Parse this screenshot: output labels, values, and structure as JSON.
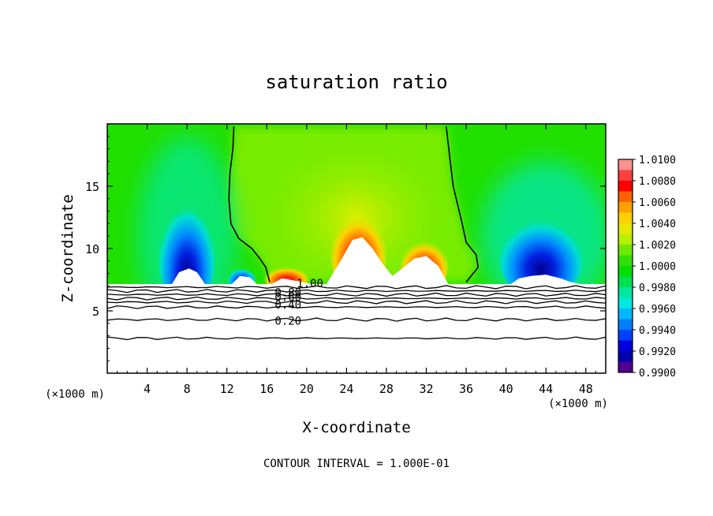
{
  "chart_data": {
    "type": "contour",
    "title": "saturation ratio",
    "xlabel": "X-coordinate",
    "ylabel": "Z-coordinate",
    "x_unit_label": "(×1000 m)",
    "z_unit_label": "(×1000 m)",
    "xlim": [
      0,
      50
    ],
    "ylim": [
      0,
      20
    ],
    "x_ticks": [
      4,
      8,
      12,
      16,
      20,
      24,
      28,
      32,
      36,
      40,
      44,
      48
    ],
    "y_ticks": [
      5,
      10,
      15
    ],
    "contour_interval_text": "CONTOUR INTERVAL = 1.000E-01",
    "colorbar": {
      "labels": [
        "1.0100",
        "1.0080",
        "1.0060",
        "1.0040",
        "1.0020",
        "1.0000",
        "0.9980",
        "0.9960",
        "0.9940",
        "0.9920",
        "0.9900"
      ],
      "colors": [
        "#ff9090",
        "#ff4040",
        "#ff0000",
        "#ff6000",
        "#ffa000",
        "#ffd000",
        "#e8e800",
        "#b8f000",
        "#70e800",
        "#30e000",
        "#00e000",
        "#00e050",
        "#00e8a0",
        "#00e8e0",
        "#00b8ff",
        "#0080ff",
        "#0040ff",
        "#0000e0",
        "#0000b0",
        "#500090"
      ]
    },
    "contour_labels": [
      {
        "text": "1.00",
        "x": 19.0,
        "z": 7.2
      },
      {
        "text": "0.80",
        "x": 16.8,
        "z": 6.5
      },
      {
        "text": "0.60",
        "x": 16.8,
        "z": 6.1
      },
      {
        "text": "0.40",
        "x": 16.8,
        "z": 5.5
      },
      {
        "text": "0.20",
        "x": 16.8,
        "z": 4.2
      }
    ],
    "lower_contours_z": [
      6.9,
      6.6,
      6.3,
      6.0,
      5.7,
      5.3,
      4.3,
      2.8
    ],
    "saturation_boundary": {
      "left": [
        [
          12.7,
          19.8
        ],
        [
          12.6,
          18.0
        ],
        [
          12.3,
          16.0
        ],
        [
          12.2,
          14.0
        ],
        [
          12.4,
          12.0
        ],
        [
          13.2,
          10.8
        ],
        [
          14.5,
          10.0
        ],
        [
          15.3,
          9.2
        ],
        [
          15.9,
          8.5
        ],
        [
          16.3,
          7.3
        ]
      ],
      "right": [
        [
          34.0,
          19.8
        ],
        [
          34.4,
          17.0
        ],
        [
          34.7,
          15.0
        ],
        [
          35.0,
          14.0
        ],
        [
          35.6,
          12.0
        ],
        [
          36.0,
          10.5
        ],
        [
          37.0,
          9.5
        ],
        [
          37.2,
          8.5
        ],
        [
          36.5,
          7.8
        ],
        [
          36.0,
          7.3
        ]
      ]
    },
    "subsaturated_cores": [
      {
        "x": 8.0,
        "z": 9.5,
        "rx": 2.8,
        "rz": 4.8
      },
      {
        "x": 13.5,
        "z": 7.6,
        "rx": 1.4,
        "rz": 1.0
      },
      {
        "x": 43.5,
        "z": 9.4,
        "rx": 4.2,
        "rz": 3.6
      }
    ],
    "supersaturated_cores": [
      {
        "x": 25.2,
        "z": 9.6,
        "rx": 2.8,
        "rz": 3.4
      },
      {
        "x": 31.8,
        "z": 8.6,
        "rx": 2.4,
        "rz": 2.2
      },
      {
        "x": 18.0,
        "z": 7.6,
        "rx": 2.2,
        "rz": 1.0
      }
    ]
  }
}
